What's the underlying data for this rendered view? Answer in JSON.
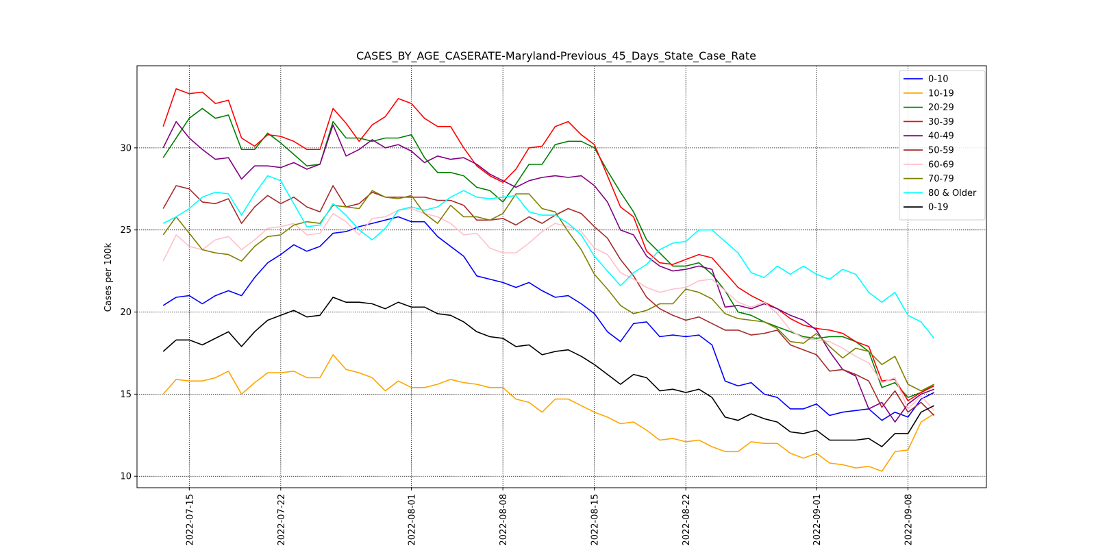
{
  "chart_data": {
    "type": "line",
    "title": "CASES_BY_AGE_CASERATE-Maryland-Previous_45_Days_State_Case_Rate",
    "xlabel": "",
    "ylabel": "Cases per 100k",
    "xlim": [
      "2022-07-11",
      "2022-09-14"
    ],
    "ylim": [
      9.3,
      35.0
    ],
    "x_ticks": [
      "2022-07-15",
      "2022-07-22",
      "2022-08-01",
      "2022-08-08",
      "2022-08-15",
      "2022-08-22",
      "2022-09-01",
      "2022-09-08"
    ],
    "y_ticks": [
      10,
      15,
      20,
      25,
      30
    ],
    "grid": true,
    "legend_position": "top-right",
    "x": [
      "2022-07-13",
      "2022-07-14",
      "2022-07-15",
      "2022-07-16",
      "2022-07-17",
      "2022-07-18",
      "2022-07-19",
      "2022-07-20",
      "2022-07-21",
      "2022-07-22",
      "2022-07-23",
      "2022-07-24",
      "2022-07-25",
      "2022-07-26",
      "2022-07-27",
      "2022-07-28",
      "2022-07-29",
      "2022-07-30",
      "2022-07-31",
      "2022-08-01",
      "2022-08-02",
      "2022-08-03",
      "2022-08-04",
      "2022-08-05",
      "2022-08-06",
      "2022-08-07",
      "2022-08-08",
      "2022-08-09",
      "2022-08-10",
      "2022-08-11",
      "2022-08-12",
      "2022-08-13",
      "2022-08-14",
      "2022-08-15",
      "2022-08-16",
      "2022-08-17",
      "2022-08-18",
      "2022-08-19",
      "2022-08-20",
      "2022-08-21",
      "2022-08-22",
      "2022-08-23",
      "2022-08-24",
      "2022-08-25",
      "2022-08-26",
      "2022-08-27",
      "2022-08-28",
      "2022-08-29",
      "2022-08-30",
      "2022-08-31",
      "2022-09-01",
      "2022-09-02",
      "2022-09-03",
      "2022-09-04",
      "2022-09-05",
      "2022-09-06",
      "2022-09-07",
      "2022-09-08",
      "2022-09-09",
      "2022-09-10"
    ],
    "series": [
      {
        "name": "0-10",
        "color": "#0000ff",
        "values": [
          20.4,
          20.9,
          21.0,
          20.5,
          21.0,
          21.3,
          21.0,
          22.1,
          23.0,
          23.5,
          24.1,
          23.7,
          24.0,
          24.8,
          24.9,
          25.2,
          25.4,
          25.6,
          25.8,
          25.5,
          25.5,
          24.6,
          24.0,
          23.4,
          22.2,
          22.0,
          21.8,
          21.5,
          21.8,
          21.3,
          20.9,
          21.0,
          20.5,
          19.9,
          18.8,
          18.2,
          19.3,
          19.4,
          18.5,
          18.6,
          18.5,
          18.6,
          18.0,
          15.8,
          15.5,
          15.7,
          15.0,
          14.8,
          14.1,
          14.1,
          14.4,
          13.7,
          13.9,
          14.0,
          14.1,
          13.4,
          13.9,
          13.6,
          14.7,
          15.1
        ]
      },
      {
        "name": "10-19",
        "color": "#ffa500",
        "values": [
          15.0,
          15.9,
          15.8,
          15.8,
          16.0,
          16.4,
          15.0,
          15.7,
          16.3,
          16.3,
          16.4,
          16.0,
          16.0,
          17.4,
          16.5,
          16.3,
          16.0,
          15.2,
          15.8,
          15.4,
          15.4,
          15.6,
          15.9,
          15.7,
          15.6,
          15.4,
          15.4,
          14.7,
          14.5,
          13.9,
          14.7,
          14.7,
          14.3,
          13.9,
          13.6,
          13.2,
          13.3,
          12.8,
          12.2,
          12.3,
          12.1,
          12.2,
          11.8,
          11.5,
          11.5,
          12.1,
          12.0,
          12.0,
          11.4,
          11.1,
          11.4,
          10.8,
          10.7,
          10.5,
          10.6,
          10.3,
          11.5,
          11.6,
          13.3,
          13.8
        ]
      },
      {
        "name": "20-29",
        "color": "#008000",
        "values": [
          29.4,
          30.6,
          31.8,
          32.4,
          31.8,
          32.0,
          29.9,
          29.9,
          30.9,
          30.3,
          29.6,
          28.9,
          29.0,
          31.6,
          30.6,
          30.6,
          30.4,
          30.6,
          30.6,
          30.8,
          29.4,
          28.5,
          28.5,
          28.3,
          27.6,
          27.4,
          26.7,
          27.8,
          29.0,
          29.0,
          30.2,
          30.4,
          30.4,
          30.0,
          28.6,
          27.3,
          26.1,
          24.4,
          23.6,
          22.8,
          22.8,
          23.0,
          22.3,
          21.3,
          20.0,
          19.8,
          19.4,
          19.1,
          18.8,
          18.5,
          18.4,
          18.5,
          18.5,
          18.2,
          17.6,
          15.4,
          15.7,
          14.8,
          15.1,
          15.6
        ]
      },
      {
        "name": "30-39",
        "color": "#ff0000",
        "values": [
          31.3,
          33.6,
          33.3,
          33.4,
          32.7,
          32.9,
          30.6,
          30.1,
          30.8,
          30.7,
          30.4,
          29.9,
          29.9,
          32.4,
          31.5,
          30.4,
          31.4,
          31.9,
          33.0,
          32.7,
          31.8,
          31.3,
          31.3,
          30.0,
          28.9,
          28.3,
          27.9,
          28.7,
          30.0,
          30.1,
          31.3,
          31.6,
          30.8,
          30.2,
          28.3,
          26.4,
          25.8,
          23.7,
          23.0,
          22.9,
          23.2,
          23.5,
          23.3,
          22.4,
          21.5,
          21.0,
          20.6,
          20.2,
          19.6,
          19.2,
          19.0,
          18.9,
          18.7,
          18.2,
          17.9,
          15.8,
          15.9,
          14.6,
          15.1,
          15.5
        ]
      },
      {
        "name": "40-49",
        "color": "#800080",
        "values": [
          30.0,
          31.6,
          30.6,
          29.9,
          29.3,
          29.4,
          28.1,
          28.9,
          28.9,
          28.8,
          29.1,
          28.7,
          29.0,
          31.4,
          29.5,
          29.9,
          30.5,
          30.0,
          30.2,
          29.8,
          29.1,
          29.5,
          29.3,
          29.4,
          29.0,
          28.4,
          28.0,
          27.6,
          28.0,
          28.2,
          28.3,
          28.2,
          28.3,
          27.7,
          26.7,
          25.0,
          24.7,
          23.4,
          22.8,
          22.5,
          22.6,
          22.8,
          22.6,
          20.3,
          20.4,
          20.2,
          20.5,
          20.2,
          19.8,
          19.5,
          18.9,
          17.6,
          16.5,
          16.1,
          14.1,
          14.5,
          13.3,
          14.4,
          15.0,
          15.3
        ]
      },
      {
        "name": "50-59",
        "color": "#a52a2a",
        "values": [
          26.3,
          27.7,
          27.5,
          26.7,
          26.6,
          26.9,
          25.4,
          26.4,
          27.1,
          26.6,
          27.0,
          26.4,
          26.1,
          27.7,
          26.4,
          26.6,
          27.3,
          27.0,
          27.0,
          27.0,
          27.0,
          26.8,
          26.8,
          26.5,
          25.6,
          25.6,
          25.7,
          25.3,
          25.8,
          25.4,
          25.9,
          26.3,
          26.0,
          25.2,
          24.5,
          23.2,
          22.2,
          20.9,
          20.2,
          19.8,
          19.5,
          19.7,
          19.3,
          18.9,
          18.9,
          18.6,
          18.7,
          18.9,
          18.0,
          17.7,
          17.4,
          16.4,
          16.5,
          16.2,
          15.8,
          14.2,
          15.2,
          13.9,
          14.5,
          13.7
        ]
      },
      {
        "name": "60-69",
        "color": "#ffc0cb",
        "values": [
          23.1,
          24.7,
          24.0,
          23.8,
          24.4,
          24.6,
          23.8,
          24.4,
          25.1,
          25.2,
          25.4,
          24.7,
          24.8,
          26.0,
          25.5,
          24.7,
          25.7,
          25.8,
          26.2,
          26.3,
          26.0,
          25.8,
          25.4,
          24.7,
          24.8,
          23.9,
          23.6,
          23.6,
          24.2,
          24.9,
          25.4,
          25.2,
          24.9,
          23.9,
          23.5,
          22.4,
          22.0,
          21.5,
          21.2,
          21.4,
          21.5,
          21.9,
          22.0,
          21.3,
          20.6,
          20.3,
          20.6,
          19.9,
          18.9,
          18.4,
          18.3,
          18.2,
          17.8,
          17.3,
          16.9,
          15.7,
          16.0,
          14.1,
          14.9,
          14.0
        ]
      },
      {
        "name": "70-79",
        "color": "#808000",
        "values": [
          24.7,
          25.8,
          24.8,
          23.8,
          23.6,
          23.5,
          23.1,
          24.0,
          24.6,
          24.7,
          25.3,
          25.5,
          25.4,
          26.5,
          26.4,
          26.3,
          27.4,
          27.0,
          26.9,
          27.1,
          26.0,
          25.4,
          26.5,
          25.8,
          25.8,
          25.6,
          26.0,
          27.2,
          27.2,
          26.3,
          26.1,
          24.9,
          23.8,
          22.3,
          21.4,
          20.4,
          19.9,
          20.1,
          20.5,
          20.5,
          21.4,
          21.2,
          20.8,
          19.9,
          19.6,
          19.5,
          19.4,
          19.0,
          18.2,
          18.1,
          18.7,
          17.9,
          17.2,
          17.8,
          17.6,
          16.8,
          17.3,
          15.6,
          15.2,
          15.6
        ]
      },
      {
        "name": "80 & Older",
        "color": "#00ffff",
        "values": [
          25.4,
          25.8,
          26.3,
          27.0,
          27.3,
          27.2,
          25.9,
          27.2,
          28.3,
          28.0,
          26.6,
          25.2,
          25.3,
          26.6,
          25.9,
          25.0,
          24.4,
          25.1,
          26.2,
          26.4,
          26.2,
          26.4,
          27.0,
          27.4,
          27.0,
          26.9,
          27.0,
          27.1,
          26.1,
          25.9,
          25.9,
          25.4,
          24.7,
          23.4,
          22.5,
          21.6,
          22.4,
          22.9,
          23.8,
          24.2,
          24.3,
          25.0,
          25.0,
          24.3,
          23.6,
          22.4,
          22.1,
          22.8,
          22.3,
          22.8,
          22.3,
          22.0,
          22.6,
          22.3,
          21.2,
          20.6,
          21.2,
          19.8,
          19.4,
          18.4
        ]
      },
      {
        "name": "0-19",
        "color": "#000000",
        "values": [
          17.6,
          18.3,
          18.3,
          18.0,
          18.4,
          18.8,
          17.9,
          18.8,
          19.5,
          19.8,
          20.1,
          19.7,
          19.8,
          20.9,
          20.6,
          20.6,
          20.5,
          20.2,
          20.6,
          20.3,
          20.3,
          19.9,
          19.8,
          19.4,
          18.8,
          18.5,
          18.4,
          17.9,
          18.0,
          17.4,
          17.6,
          17.7,
          17.3,
          16.8,
          16.2,
          15.6,
          16.2,
          16.0,
          15.2,
          15.3,
          15.1,
          15.3,
          14.8,
          13.6,
          13.4,
          13.8,
          13.5,
          13.3,
          12.7,
          12.6,
          12.8,
          12.2,
          12.2,
          12.2,
          12.3,
          11.8,
          12.6,
          12.6,
          13.9,
          14.3
        ]
      }
    ]
  }
}
